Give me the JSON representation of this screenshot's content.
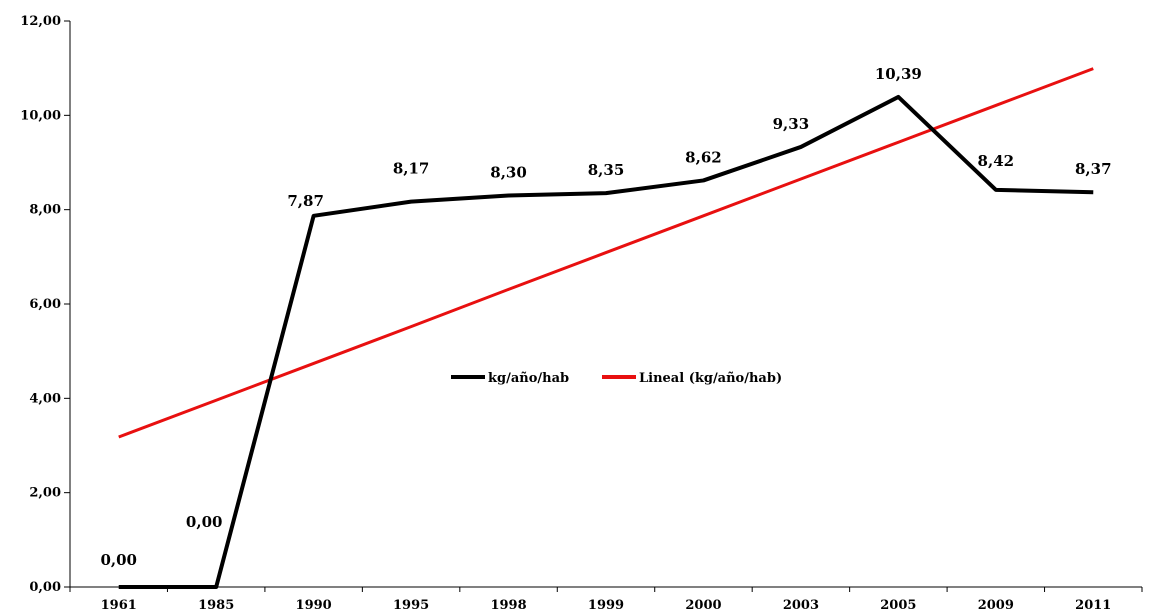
{
  "chart_data": {
    "type": "line",
    "categories": [
      "1961",
      "1985",
      "1990",
      "1995",
      "1998",
      "1999",
      "2000",
      "2003",
      "2005",
      "2009",
      "2011"
    ],
    "series": [
      {
        "name": "kg/año/hab",
        "color": "#000000",
        "values": [
          0.0,
          0.0,
          7.87,
          8.17,
          8.3,
          8.35,
          8.62,
          9.33,
          10.39,
          8.42,
          8.37
        ],
        "labels": [
          "0,00",
          "0,00",
          "7,87",
          "8,17",
          "8,30",
          "8,35",
          "8,62",
          "9,33",
          "10,39",
          "8,42",
          "8,37"
        ]
      },
      {
        "name": "Lineal (kg/año/hab)",
        "color": "#e81010",
        "trendline": true,
        "values": [
          3.18,
          3.96,
          4.74,
          5.52,
          6.31,
          7.09,
          7.87,
          8.65,
          9.43,
          10.21,
          10.99
        ]
      }
    ],
    "y_ticks": [
      "0,00",
      "2,00",
      "4,00",
      "6,00",
      "8,00",
      "10,00",
      "12,00"
    ],
    "ylim": [
      0,
      12
    ],
    "grid": false,
    "legend_position": "center"
  }
}
